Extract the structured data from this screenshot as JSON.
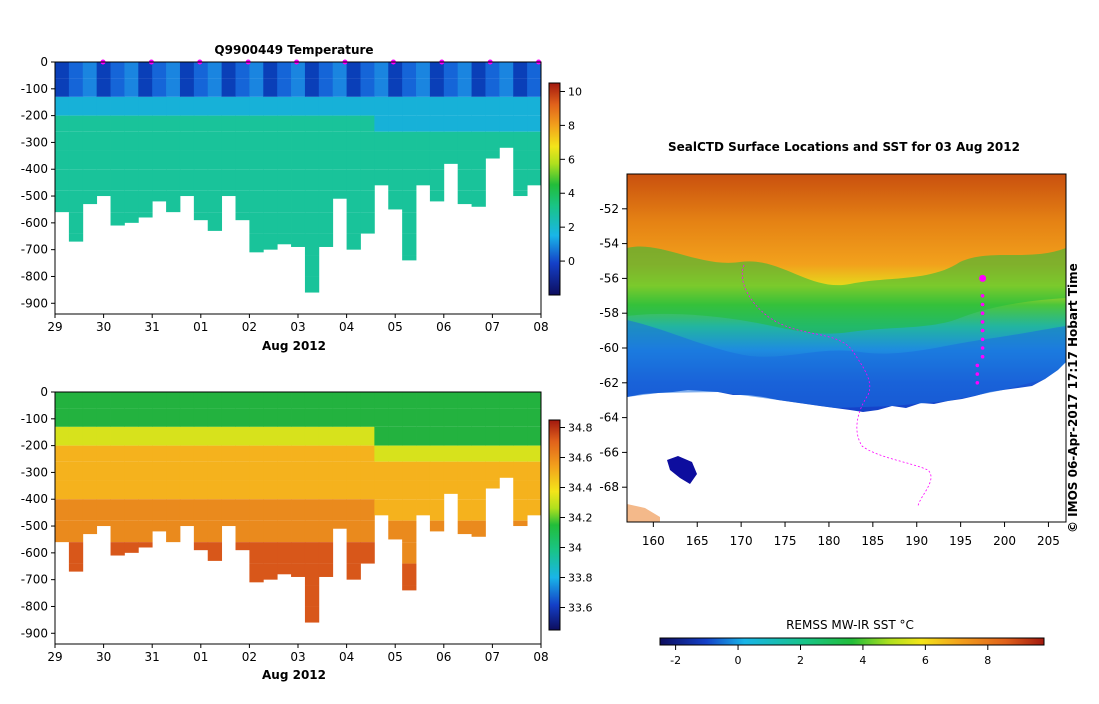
{
  "top_title": "Q9900449  Temperature",
  "map_title": "SealCTD Surface Locations and SST for 03 Aug 2012",
  "credit": "© IMOS 06-Apr-2017 17:17 Hobart Time",
  "sst_label": "REMSS MW-IR SST °C",
  "date_label": "Aug 2012",
  "chart_data": [
    {
      "type": "heatmap",
      "title": "Q9900449  Temperature",
      "xlabel": "Aug 2012",
      "ylabel": "",
      "x_ticks": [
        "29",
        "30",
        "31",
        "01",
        "02",
        "03",
        "04",
        "05",
        "06",
        "07",
        "08"
      ],
      "y_ticks": [
        "0",
        "-100",
        "-200",
        "-300",
        "-400",
        "-500",
        "-600",
        "-700",
        "-800",
        "-900"
      ],
      "ylim": [
        -940,
        0
      ],
      "colorbar_ticks": [
        "10",
        "8",
        "6",
        "4",
        "2",
        "0"
      ],
      "colorbar_range": [
        -2,
        10.5
      ],
      "profile_max_depth": [
        560,
        670,
        530,
        500,
        610,
        600,
        580,
        520,
        560,
        500,
        590,
        630,
        500,
        590,
        710,
        700,
        680,
        690,
        860,
        690,
        510,
        700,
        640,
        460,
        550,
        740,
        460,
        520,
        380,
        530,
        540,
        360,
        320,
        500,
        460
      ]
    },
    {
      "type": "heatmap",
      "title": "",
      "xlabel": "Aug 2012",
      "ylabel": "",
      "x_ticks": [
        "29",
        "30",
        "31",
        "01",
        "02",
        "03",
        "04",
        "05",
        "06",
        "07",
        "08"
      ],
      "y_ticks": [
        "0",
        "-100",
        "-200",
        "-300",
        "-400",
        "-500",
        "-600",
        "-700",
        "-800",
        "-900"
      ],
      "ylim": [
        -940,
        0
      ],
      "colorbar_ticks": [
        "34.8",
        "34.6",
        "34.4",
        "34.2",
        "34",
        "33.8",
        "33.6"
      ],
      "colorbar_range": [
        33.45,
        34.85
      ]
    },
    {
      "type": "heatmap",
      "title": "SealCTD Surface Locations and SST for 03 Aug 2012",
      "x_ticks": [
        "160",
        "165",
        "170",
        "175",
        "180",
        "185",
        "190",
        "195",
        "200",
        "205"
      ],
      "y_ticks": [
        "-52",
        "-54",
        "-56",
        "-58",
        "-60",
        "-62",
        "-64",
        "-66",
        "-68"
      ],
      "xlim": [
        157,
        207
      ],
      "ylim": [
        -70,
        -50
      ],
      "colorbar_label": "REMSS MW-IR SST °C",
      "colorbar_ticks": [
        "-2",
        "0",
        "2",
        "4",
        "6",
        "8"
      ],
      "colorbar_range": [
        -2.5,
        9.8
      ]
    }
  ]
}
